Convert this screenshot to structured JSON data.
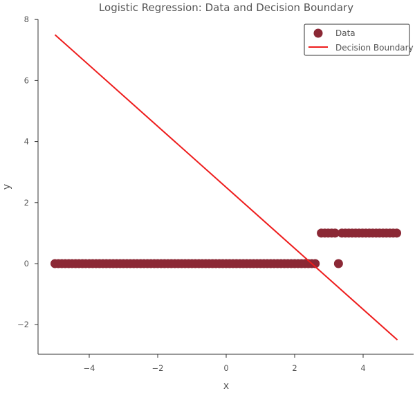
{
  "chart_data": {
    "type": "scatter",
    "title": "Logistic Regression: Data and Decision Boundary",
    "xlabel": "x",
    "ylabel": "y",
    "xlim": [
      -5.5,
      5.5
    ],
    "ylim": [
      -3,
      8
    ],
    "x_ticks": [
      -4,
      -2,
      0,
      2,
      4
    ],
    "y_ticks": [
      -2,
      0,
      2,
      4,
      6,
      8
    ],
    "x_tick_labels": [
      "−4",
      "−2",
      "0",
      "2",
      "4"
    ],
    "y_tick_labels": [
      "−2",
      "0",
      "2",
      "4",
      "6",
      "8"
    ],
    "grid": false,
    "legend_position": "top-right",
    "colors": {
      "data": "#8b2835",
      "boundary": "#ee1c1c"
    },
    "series": [
      {
        "name": "Data",
        "type": "scatter",
        "color": "#8b2835",
        "segments": [
          {
            "x_start": -5.0,
            "x_end": 2.68,
            "step": 0.1,
            "y": 0
          },
          {
            "x_start": 2.78,
            "x_end": 3.18,
            "step": 0.1,
            "y": 1
          },
          {
            "x_start": 3.38,
            "x_end": 4.98,
            "step": 0.1,
            "y": 1
          }
        ],
        "points": [
          {
            "x": 3.28,
            "y": 0
          }
        ]
      },
      {
        "name": "Decision Boundary",
        "type": "line",
        "color": "#ee1c1c",
        "x": [
          -5.0,
          5.0
        ],
        "y": [
          7.5,
          -2.5
        ]
      }
    ]
  }
}
